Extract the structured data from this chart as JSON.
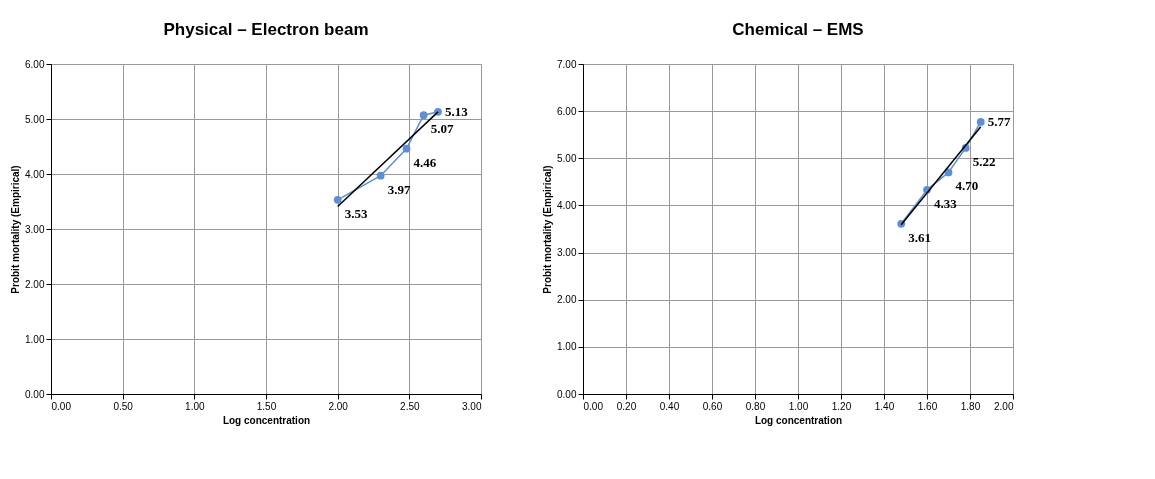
{
  "chart_data": [
    {
      "type": "line",
      "title": "Physical – Electron beam",
      "xlabel": "Log concentration",
      "ylabel": "Probit mortality (Empirical)",
      "xlim": [
        0,
        3
      ],
      "xticks": [
        {
          "value": 0,
          "label": "0.00"
        },
        {
          "value": 0.5,
          "label": "0.50"
        },
        {
          "value": 1,
          "label": "1.00"
        },
        {
          "value": 1.5,
          "label": "1.50"
        },
        {
          "value": 2,
          "label": "2.00"
        },
        {
          "value": 2.5,
          "label": "2.50"
        },
        {
          "value": 3,
          "label": "3.00"
        }
      ],
      "ylim": [
        0,
        6
      ],
      "yticks": [
        {
          "value": 0,
          "label": "0.00"
        },
        {
          "value": 1,
          "label": "1.00"
        },
        {
          "value": 2,
          "label": "2.00"
        },
        {
          "value": 3,
          "label": "3.00"
        },
        {
          "value": 4,
          "label": "4.00"
        },
        {
          "value": 5,
          "label": "5.00"
        },
        {
          "value": 6,
          "label": "6.00"
        }
      ],
      "grid": true,
      "marker": "circle",
      "series": [
        {
          "color": "#5b8fd6",
          "x": [
            2.0,
            2.3,
            2.48,
            2.6,
            2.7
          ],
          "values": [
            3.53,
            3.97,
            4.46,
            5.07,
            5.13
          ],
          "value_labels": [
            "3.53",
            "3.97",
            "4.46",
            "5.07",
            "5.13"
          ]
        },
        {
          "color": "#000000",
          "marker": "none",
          "x": [
            2.0,
            2.7
          ],
          "values": [
            3.41,
            5.13
          ]
        }
      ]
    },
    {
      "type": "line",
      "title": "Chemical – EMS",
      "xlabel": "Log concentration",
      "ylabel": "Probit mortality (Empirical)",
      "xlim": [
        0,
        2
      ],
      "xticks": [
        {
          "value": 0,
          "label": "0.00"
        },
        {
          "value": 0.2,
          "label": "0.20"
        },
        {
          "value": 0.4,
          "label": "0.40"
        },
        {
          "value": 0.6,
          "label": "0.60"
        },
        {
          "value": 0.8,
          "label": "0.80"
        },
        {
          "value": 1,
          "label": "1.00"
        },
        {
          "value": 1.2,
          "label": "1.20"
        },
        {
          "value": 1.4,
          "label": "1.40"
        },
        {
          "value": 1.6,
          "label": "1.60"
        },
        {
          "value": 1.8,
          "label": "1.80"
        },
        {
          "value": 2,
          "label": "2.00"
        }
      ],
      "ylim": [
        0,
        7
      ],
      "yticks": [
        {
          "value": 0,
          "label": "0.00"
        },
        {
          "value": 1,
          "label": "1.00"
        },
        {
          "value": 2,
          "label": "2.00"
        },
        {
          "value": 3,
          "label": "3.00"
        },
        {
          "value": 4,
          "label": "4.00"
        },
        {
          "value": 5,
          "label": "5.00"
        },
        {
          "value": 6,
          "label": "6.00"
        },
        {
          "value": 7,
          "label": "7.00"
        }
      ],
      "grid": true,
      "marker": "circle",
      "series": [
        {
          "color": "#5b8fd6",
          "x": [
            1.48,
            1.6,
            1.7,
            1.78,
            1.85
          ],
          "values": [
            3.61,
            4.33,
            4.7,
            5.22,
            5.77
          ],
          "value_labels": [
            "3.61",
            "4.33",
            "4.70",
            "5.22",
            "5.77"
          ]
        },
        {
          "color": "#000000",
          "marker": "none",
          "x": [
            1.48,
            1.85
          ],
          "values": [
            3.59,
            5.67
          ]
        }
      ]
    }
  ]
}
